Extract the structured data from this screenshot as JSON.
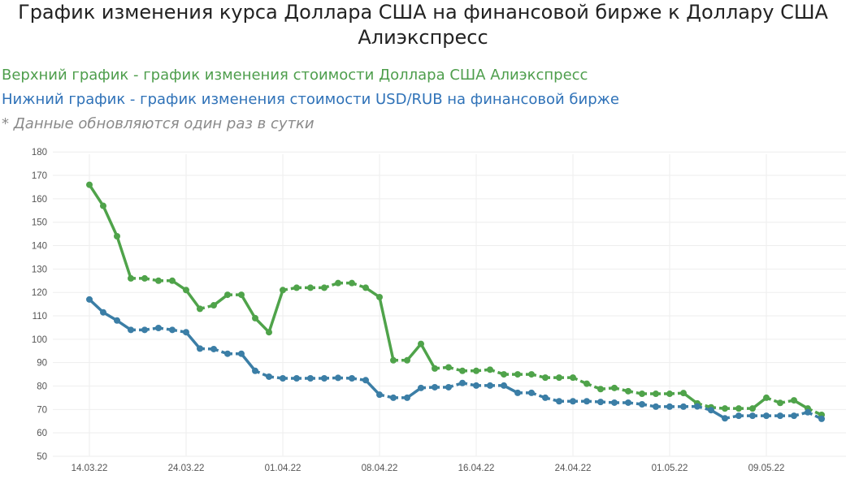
{
  "header": {
    "title_line1": "График изменения курса Доллара США на финансовой бирже к Доллару США",
    "title_line2": "Алиэкспресс"
  },
  "legend": {
    "upper": "Верхний график - график изменения стоимости Доллара США Алиэкспресс",
    "lower": "Нижний график - график изменения стоимости USD/RUB на финансовой бирже",
    "note": "* Данные обновляются один раз в сутки"
  },
  "chart_data": {
    "type": "line",
    "title": "График изменения курса Доллара США на финансовой бирже к Доллару США Алиэкспресс",
    "xlabel": "",
    "ylabel": "",
    "ylim": [
      50,
      180
    ],
    "y_ticks": [
      50,
      60,
      70,
      80,
      90,
      100,
      110,
      120,
      130,
      140,
      150,
      160,
      170,
      180
    ],
    "x_tick_labels": [
      {
        "index": 0,
        "label": "14.03.22"
      },
      {
        "index": 7,
        "label": "24.03.22"
      },
      {
        "index": 14,
        "label": "01.04.22"
      },
      {
        "index": 21,
        "label": "08.04.22"
      },
      {
        "index": 28,
        "label": "16.04.22"
      },
      {
        "index": 35,
        "label": "24.04.22"
      },
      {
        "index": 42,
        "label": "01.05.22"
      },
      {
        "index": 49,
        "label": "09.05.22"
      }
    ],
    "grid": true,
    "series": [
      {
        "name": "Доллар США Алиэкспресс",
        "color": "#4fa34a",
        "values": [
          166,
          157,
          144,
          126,
          126,
          125,
          125,
          121,
          113,
          114.5,
          119,
          119,
          109,
          103,
          121,
          122,
          122,
          122,
          124,
          124,
          122,
          118,
          91,
          91,
          98,
          87.5,
          88,
          86.5,
          86.5,
          87,
          85,
          85,
          85,
          83.6,
          83.6,
          83.6,
          81,
          78.7,
          79.2,
          77.8,
          76.7,
          76.7,
          76.7,
          77,
          72.6,
          70.9,
          70.4,
          70.4,
          70.4,
          75,
          72.8,
          73.9,
          70.4,
          67.7
        ]
      },
      {
        "name": "USD/RUB",
        "color": "#3b7ea6",
        "values": [
          117,
          111.5,
          108,
          104,
          104,
          104.8,
          104,
          103,
          96,
          95.8,
          93.8,
          93.8,
          86.5,
          84,
          83.3,
          83.3,
          83.3,
          83.3,
          83.5,
          83.3,
          82.5,
          76.3,
          75,
          75,
          79.2,
          79.5,
          79.5,
          81.3,
          80.2,
          80.2,
          80.2,
          77.1,
          77.1,
          75,
          73.5,
          73.5,
          73.5,
          73.2,
          72.9,
          72.9,
          72.2,
          71.2,
          71.2,
          71.2,
          71.3,
          69.7,
          66.2,
          67.3,
          67.3,
          67.3,
          67.3,
          67.3,
          68.8,
          66
        ]
      }
    ]
  }
}
